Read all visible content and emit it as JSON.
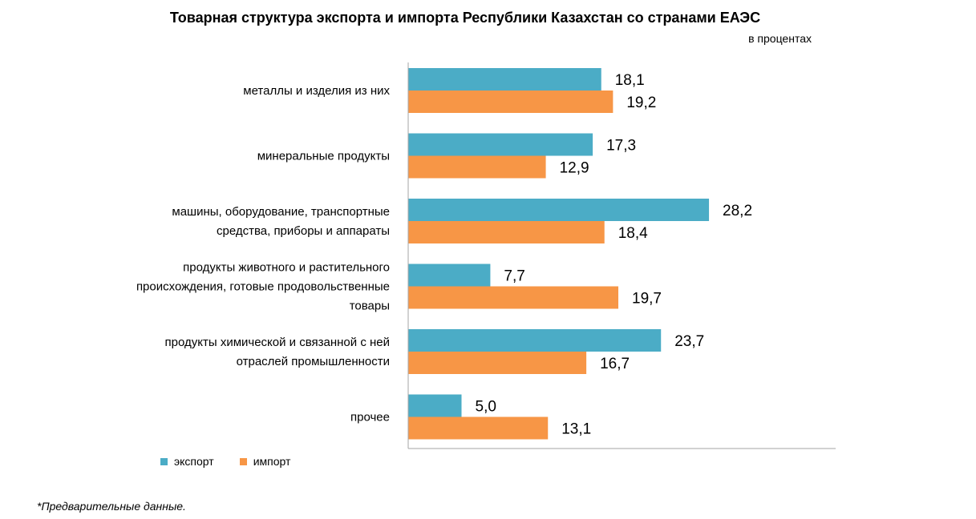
{
  "chart_data": {
    "type": "bar",
    "orientation": "horizontal",
    "title": "Товарная структура экспорта и импорта Республики Казахстан со странами ЕАЭС",
    "units_label": "в процентах",
    "categories": [
      [
        "металлы и изделия  из них"
      ],
      [
        "минеральные продукты"
      ],
      [
        "машины, оборудование, транспортные",
        "средства, приборы и аппараты"
      ],
      [
        "продукты животного и растительного",
        "происхождения, готовые продовольственные",
        "товары"
      ],
      [
        "продукты химической и связанной с ней",
        "отраслей промышленности"
      ],
      [
        "прочее"
      ]
    ],
    "series": [
      {
        "name": "экспорт",
        "color": "#4BACC6",
        "values": [
          18.1,
          17.3,
          28.2,
          7.7,
          23.7,
          5.0
        ],
        "labels": [
          "18,1",
          "17,3",
          "28,2",
          "7,7",
          "23,7",
          "5,0"
        ]
      },
      {
        "name": "импорт",
        "color": "#F79646",
        "values": [
          19.2,
          12.9,
          18.4,
          19.7,
          16.7,
          13.1
        ],
        "labels": [
          "19,2",
          "12,9",
          "18,4",
          "19,7",
          "16,7",
          "13,1"
        ]
      }
    ],
    "xlim": [
      0,
      40
    ],
    "grid": false,
    "legend_position": "bottom-left"
  },
  "footnote": "*Предварительные данные."
}
